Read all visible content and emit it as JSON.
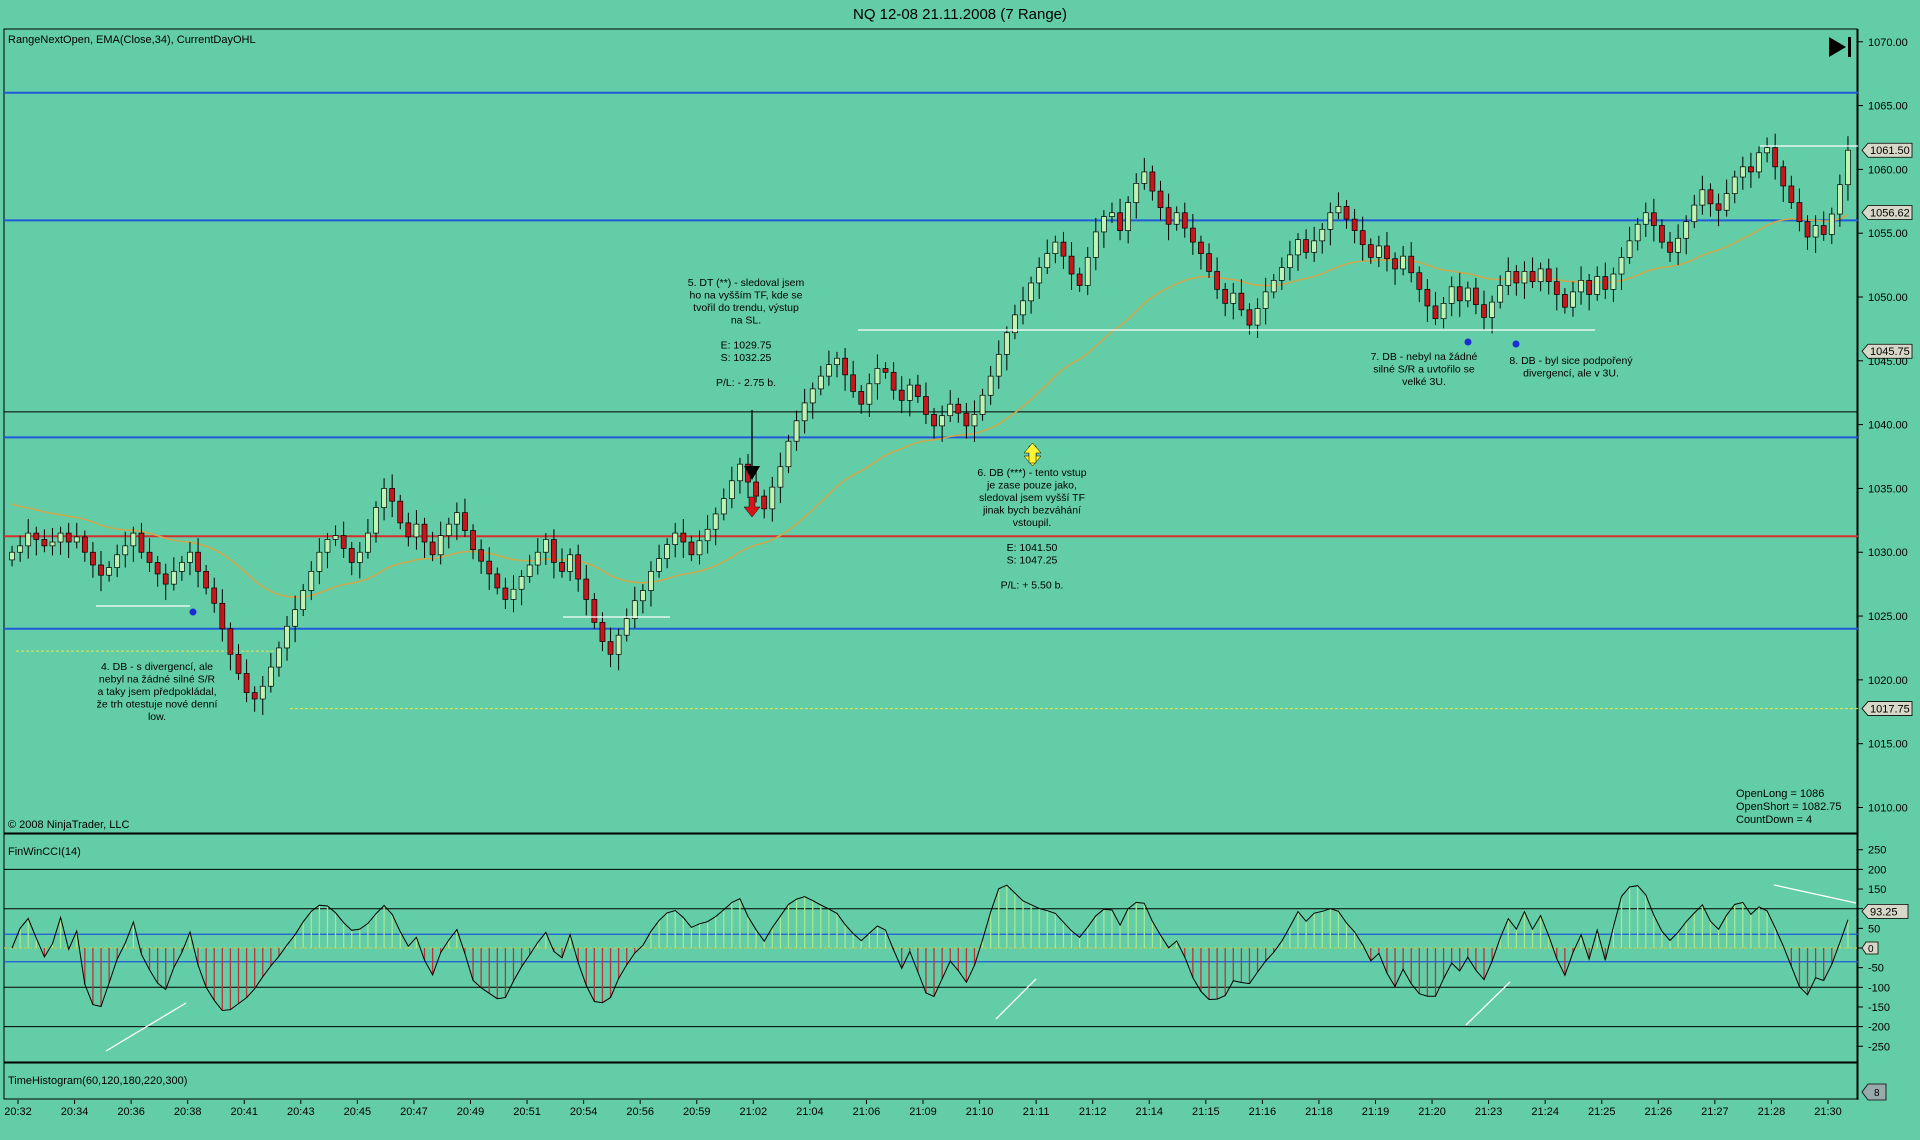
{
  "window": {
    "title": "NQ 12-08  21.11.2008 (7 Range)"
  },
  "panels": {
    "price": {
      "label": "RangeNextOpen, EMA(Close,34), CurrentDayOHL",
      "copyright": "© 2008 NinjaTrader, LLC",
      "stats": [
        "OpenLong = 1086",
        "OpenShort = 1082.75",
        "CountDown = 4"
      ]
    },
    "cci": {
      "label": "FinWinCCI(14)"
    },
    "time_histogram": {
      "label": "TimeHistogram(60,120,180,220,300)",
      "marker": "8"
    }
  },
  "toolbar": {
    "go_end_icon": "skip-to-end-icon"
  },
  "colors": {
    "background": "#63CDA7",
    "up_candle": "#BDF3B5",
    "down_candle": "#C8161D",
    "ema": "#C9A84E",
    "blue_level": "#1F5BD6",
    "red_level": "#D42E2E",
    "cci_fill_pos": "#A6E88E",
    "cci_fill_neg": "#B8353A"
  },
  "annotations": [
    {
      "id": "a4",
      "lines": [
        "4. DB - s divergencí, ale",
        "nebyl na žádné silné S/R",
        "a taky jsem předpokládal,",
        "že trh otestuje nové denní",
        "low."
      ]
    },
    {
      "id": "a5",
      "lines": [
        "5. DT (**) - sledoval jsem",
        "ho na vyšším TF, kde se",
        "tvořil do trendu, výstup",
        "na SL.",
        "",
        "E: 1029.75",
        "S: 1032.25",
        "",
        "P/L: - 2.75 b."
      ]
    },
    {
      "id": "a6",
      "lines": [
        "6. DB (***) - tento vstup",
        "je zase pouze jako,",
        "sledoval jsem vyšší TF",
        "jinak bych bezváhání",
        "vstoupil.",
        "",
        "E: 1041.50",
        "S: 1047.25",
        "",
        "P/L: + 5.50 b."
      ]
    },
    {
      "id": "a7",
      "lines": [
        "7. DB - nebyl na žádné",
        "silné S/R a uvtořilo se",
        "velké 3U."
      ]
    },
    {
      "id": "a8",
      "lines": [
        "8. DB - byl sice podpořený",
        "divergencí, ale v 3U."
      ]
    }
  ],
  "chart_data": [
    {
      "type": "candlestick",
      "title": "NQ 12-08  21.11.2008 (7 Range)",
      "price_axis_ticks": [
        1070,
        1065,
        1060,
        1055,
        1050,
        1045,
        1040,
        1035,
        1030,
        1025,
        1020,
        1015,
        1010
      ],
      "price_axis_labels": [
        "1070.00",
        "1065.00",
        "1060.00",
        "1055.00",
        "1050.00",
        "1045.00",
        "1040.00",
        "1035.00",
        "1030.00",
        "1025.00",
        "1020.00",
        "1015.00",
        "1010.00"
      ],
      "ylim": [
        1008,
        1071
      ],
      "price_markers": [
        {
          "label": "1061.50",
          "value": 1061.5
        },
        {
          "label": "1056.62",
          "value": 1056.62
        },
        {
          "label": "1045.75",
          "value": 1045.75
        },
        {
          "label": "1017.75",
          "value": 1017.75
        }
      ],
      "horizontal_levels": [
        {
          "value": 1066.0,
          "color": "blue"
        },
        {
          "value": 1056.0,
          "color": "blue"
        },
        {
          "value": 1041.0,
          "color": "black"
        },
        {
          "value": 1039.0,
          "color": "blue"
        },
        {
          "value": 1031.25,
          "color": "red"
        },
        {
          "value": 1024.0,
          "color": "blue"
        }
      ],
      "dashed_levels": [
        1022.25,
        1017.75
      ],
      "x_labels": [
        "20:32",
        "20:34",
        "20:36",
        "20:38",
        "20:41",
        "20:43",
        "20:45",
        "20:47",
        "20:49",
        "20:51",
        "20:54",
        "20:56",
        "20:59",
        "21:02",
        "21:04",
        "21:06",
        "21:09",
        "21:10",
        "21:11",
        "21:12",
        "21:14",
        "21:15",
        "21:16",
        "21:18",
        "21:19",
        "21:20",
        "21:23",
        "21:24",
        "21:25",
        "21:26",
        "21:27",
        "21:28",
        "21:30"
      ],
      "close": [
        1030,
        1030.5,
        1031.5,
        1031,
        1030.5,
        1030.8,
        1031.5,
        1030.8,
        1031.2,
        1030,
        1029,
        1028.2,
        1028.8,
        1029.8,
        1030.5,
        1031.5,
        1030,
        1029.2,
        1028.3,
        1027.5,
        1028.5,
        1029.2,
        1030,
        1028.5,
        1027.2,
        1026,
        1024,
        1022,
        1020.5,
        1019,
        1018.5,
        1019.5,
        1021,
        1022.5,
        1024.2,
        1025.5,
        1027,
        1028.5,
        1030,
        1031,
        1031.3,
        1030.3,
        1029.2,
        1030,
        1031.5,
        1033.5,
        1035,
        1034,
        1032.3,
        1031.2,
        1032.2,
        1030.8,
        1029.8,
        1031.3,
        1032.2,
        1033.1,
        1031.7,
        1030.2,
        1029.3,
        1028.3,
        1027.2,
        1026.3,
        1027.1,
        1028.1,
        1029,
        1030,
        1031,
        1029.2,
        1028.5,
        1029.8,
        1027.9,
        1026.3,
        1024.5,
        1023,
        1022,
        1023.5,
        1024.8,
        1026.2,
        1027,
        1028.5,
        1029.5,
        1030.6,
        1031.5,
        1030.8,
        1029.8,
        1030.9,
        1031.8,
        1033,
        1034.2,
        1035.6,
        1036.9,
        1035.5,
        1034.4,
        1033.4,
        1035.1,
        1036.7,
        1038.7,
        1040.3,
        1041.7,
        1042.8,
        1043.8,
        1044.7,
        1045.2,
        1043.9,
        1042.6,
        1041.6,
        1043.2,
        1044.4,
        1044.1,
        1042.7,
        1041.9,
        1043.1,
        1042.2,
        1040.8,
        1039.9,
        1040.7,
        1041.6,
        1040.9,
        1039.9,
        1040.8,
        1042.3,
        1043.8,
        1045.5,
        1047.2,
        1048.6,
        1049.7,
        1051.1,
        1052.3,
        1053.4,
        1054.3,
        1053.2,
        1051.8,
        1050.9,
        1053.1,
        1055.1,
        1056.3,
        1056.6,
        1055.2,
        1057.4,
        1058.9,
        1059.8,
        1058.3,
        1057,
        1055.7,
        1056.6,
        1055.4,
        1054.3,
        1053.4,
        1052,
        1050.6,
        1049.5,
        1050.3,
        1049,
        1047.8,
        1049.1,
        1050.4,
        1051.3,
        1052.3,
        1053.3,
        1054.5,
        1053.5,
        1054.4,
        1055.3,
        1056.6,
        1057.1,
        1056.1,
        1055.2,
        1054.1,
        1053.1,
        1054,
        1053,
        1052.2,
        1053.2,
        1051.9,
        1050.6,
        1049.3,
        1048.3,
        1049.5,
        1050.8,
        1049.7,
        1050.7,
        1049.4,
        1048.4,
        1049.6,
        1050.9,
        1052,
        1051.1,
        1052,
        1051.2,
        1052.2,
        1051.2,
        1050.2,
        1049.2,
        1050.4,
        1051.3,
        1050.2,
        1051.6,
        1050.6,
        1051.8,
        1053.1,
        1054.4,
        1055.7,
        1056.6,
        1055.6,
        1054.3,
        1053.5,
        1054.6,
        1055.9,
        1057.2,
        1058.4,
        1057.3,
        1056.8,
        1058.1,
        1059.4,
        1060.2,
        1059.8,
        1061.3,
        1061.7,
        1060.2,
        1058.7,
        1057.4,
        1055.9,
        1054.7,
        1055.6,
        1054.9,
        1056.5,
        1058.8,
        1061.5
      ]
    },
    {
      "type": "area",
      "title": "FinWinCCI(14)",
      "y_axis_ticks": [
        250,
        200,
        150,
        100,
        50,
        0,
        -50,
        -100,
        -150,
        -200,
        -250
      ],
      "ylim": [
        -290,
        290
      ],
      "levels": [
        {
          "value": 200
        },
        {
          "value": 100
        },
        {
          "value": -100
        },
        {
          "value": -200
        }
      ],
      "blue_levels": [
        35,
        -35
      ],
      "current_value_label": "93.25",
      "zero_label": "0"
    }
  ]
}
